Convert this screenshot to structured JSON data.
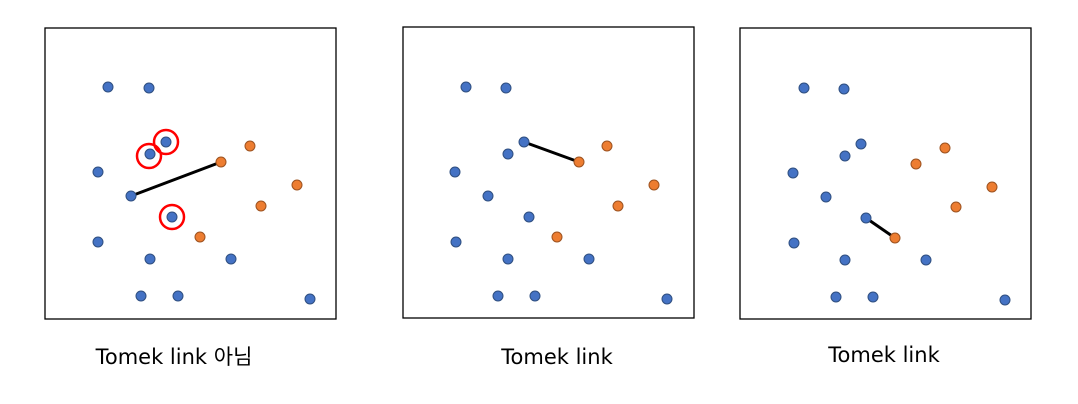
{
  "colors": {
    "majority_point": "#4472C4",
    "minority_point": "#ED7D31",
    "highlight_ring": "#FF0000",
    "link_line": "#000000",
    "panel_border": "#000000"
  },
  "panels": [
    {
      "caption": "Tomek link 아님",
      "highlight_count": 3,
      "link_count": 1
    },
    {
      "caption": "Tomek link",
      "highlight_count": 0,
      "link_count": 1
    },
    {
      "caption": "Tomek link",
      "highlight_count": 0,
      "link_count": 1
    }
  ]
}
